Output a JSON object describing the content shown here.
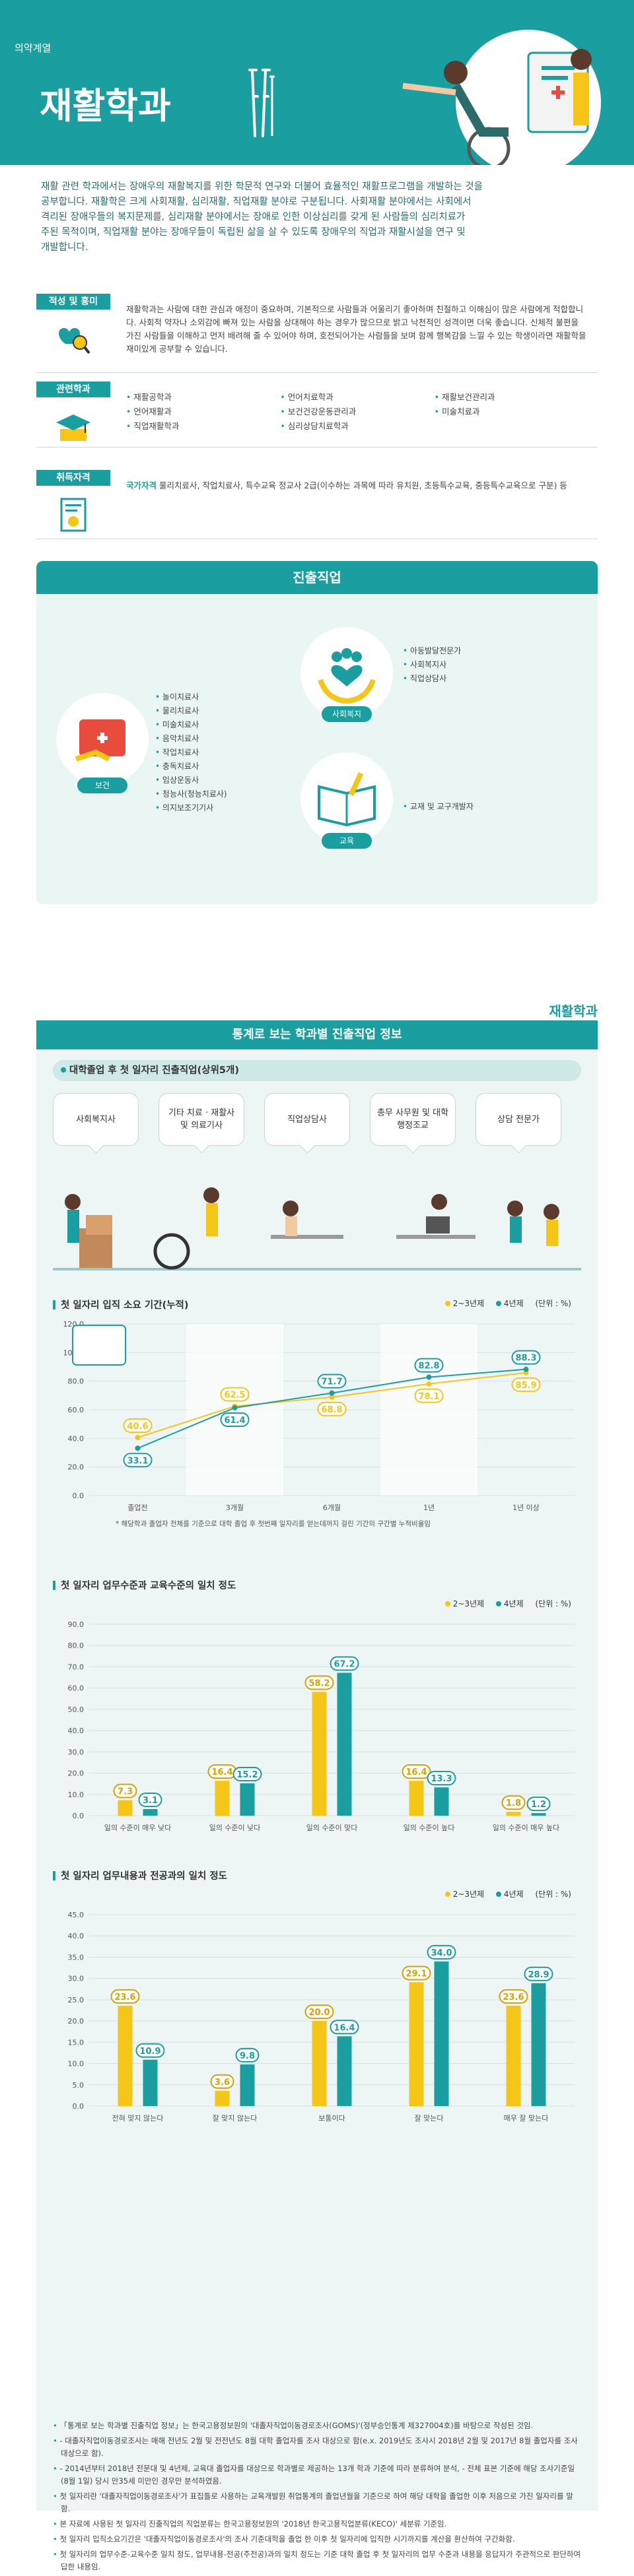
{
  "hero": {
    "category": "의약계열",
    "title": "재활학과"
  },
  "intro": "재활 관련 학과에서는 장애우의 재활복지를 위한 학문적 연구와 더불어 효율적인 재활프로그램을 개발하는 것을 공부합니다. 재활학은 크게 사회재활, 심리재활, 직업재활 분야로 구분됩니다. 사회재활 분야에서는 사회에서 격리된 장애우들의 복지문제를, 심리재활 분야에서는 장애로 인한 이상심리를 갖게 된 사람들의 심리치료가 주된 목적이며, 직업재활 분야는 장애우들이 독립된 삶을 살 수 있도록 장애우의 직업과 재활시설을 연구 및 개발합니다.",
  "aptitude": {
    "tag": "적성 및 흥미",
    "text": "재활학과는 사람에 대한 관심과 애정이 중요하며, 기본적으로 사람들과 어울리기 좋아하며 친절하고 이해심이 많은 사람에게 적합합니다. 사회적 약자나 소외감에 빠져 있는 사람을 상대해야 하는 경우가 많으므로 밝고 낙천적인 성격이면 더욱 좋습니다. 신체적 불편을 가진 사람들을 이해하고 먼저 배려해 줄 수 있어야 하며, 호전되어가는 사람들을 보며 함께 행복감을 느낄 수 있는 학생이라면 재활학을 재미있게 공부할 수 있습니다."
  },
  "departments": {
    "tag": "관련학과",
    "items": [
      "재활공학과",
      "언어치료학과",
      "재활보건관리과",
      "언어재활과",
      "보건건강운동관리과",
      "미술치료과",
      "직업재활학과",
      "심리상담치료학과"
    ]
  },
  "certificates": {
    "tag": "취득자격",
    "prefix": "국가자격",
    "text": "물리치료사, 작업치료사, 특수교육 정교사 2급(이수하는 과목에 따라 유치원, 초등특수교육, 중등특수교육으로 구분) 등"
  },
  "careers": {
    "title": "진출직업",
    "groups": [
      {
        "label": "보건",
        "jobs": [
          "놀이치료사",
          "물리치료사",
          "미술치료사",
          "음악치료사",
          "작업치료사",
          "충독치료사",
          "임상운동사",
          "청능사(청능치료사)",
          "의지보조기기사"
        ]
      },
      {
        "label": "사회복지",
        "jobs": [
          "아동발달전문가",
          "사회복지사",
          "직업상담사"
        ]
      },
      {
        "label": "교육",
        "jobs": [
          "교재 및 교구개발자"
        ]
      }
    ]
  },
  "section2": {
    "tag": "재활학과",
    "title": "통계로 보는 학과별 진출직업 정보",
    "top_jobs_title": "대학졸업 후 첫 일자리 진출직업(상위5개)",
    "top_jobs": [
      "사회복지사",
      "기타 치료 · 재활사 및 의료기사",
      "직업상담사",
      "총무 사무원 및 대학 행정조교",
      "상담 전문가"
    ],
    "legend_a": "2~3년제",
    "legend_b": "4년제",
    "unit": "(단위 : %)"
  },
  "chart_data": [
    {
      "type": "line",
      "title": "첫 일자리 입직 소요 기간(누적)",
      "categories": [
        "졸업전",
        "3개월",
        "6개월",
        "1년",
        "1년 이상"
      ],
      "ylim": [
        0,
        120
      ],
      "yticks": [
        "0.0",
        "20.0",
        "40.0",
        "60.0",
        "80.0",
        "100.0",
        "120.0"
      ],
      "series": [
        {
          "name": "2~3년제",
          "values": [
            40.6,
            62.5,
            68.8,
            78.1,
            85.9
          ]
        },
        {
          "name": "4년제",
          "values": [
            33.1,
            61.4,
            71.7,
            82.8,
            88.3
          ]
        }
      ],
      "note": "* 해당학과 졸업자 전체를 기준으로 대학 졸업 후 첫번째 일자리를 얻는데까지 걸린 기간의 구간별 누적비율임"
    },
    {
      "type": "bar",
      "title": "첫 일자리 업무수준과 교육수준의 일치 정도",
      "categories": [
        "일의 수준이 매우 낮다",
        "일의 수준이 낮다",
        "일의 수준이 맞다",
        "일의 수준이 높다",
        "일의 수준이 매우 높다"
      ],
      "ylim": [
        0,
        90
      ],
      "yticks": [
        "0.0",
        "10.0",
        "20.0",
        "30.0",
        "40.0",
        "50.0",
        "60.0",
        "70.0",
        "80.0",
        "90.0"
      ],
      "series": [
        {
          "name": "2~3년제",
          "values": [
            7.3,
            16.4,
            58.2,
            16.4,
            1.8
          ]
        },
        {
          "name": "4년제",
          "values": [
            3.1,
            15.2,
            67.2,
            13.3,
            1.2
          ]
        }
      ]
    },
    {
      "type": "bar",
      "title": "첫 일자리 업무내용과 전공과의 일치 정도",
      "categories": [
        "전혀 맞지 않는다",
        "잘 맞지 않는다",
        "보통이다",
        "잘 맞는다",
        "매우 잘 맞는다"
      ],
      "ylim": [
        0,
        45
      ],
      "yticks": [
        "0.0",
        "5.0",
        "10.0",
        "15.0",
        "20.0",
        "25.0",
        "30.0",
        "35.0",
        "40.0",
        "45.0"
      ],
      "series": [
        {
          "name": "2~3년제",
          "values": [
            23.6,
            3.6,
            20.0,
            29.1,
            23.6
          ]
        },
        {
          "name": "4년제",
          "values": [
            10.9,
            9.8,
            16.4,
            34.0,
            28.9
          ]
        }
      ]
    }
  ],
  "footnotes": [
    "「통계로 보는 학과별 진출직업 정보」는 한국고용정보원의 '대졸자직업이동경로조사(GOMS)'(정부승인통계 제327004호)를 바탕으로 작성된 것임.",
    "- 대졸자직업이동경로조사는 매해 전년도 2월 및 전전년도 8월 대학 졸업자를 조사 대상으로 함(e.x. 2019년도 조사시 2018년 2월 및 2017년 8월 졸업자를 조사대상으로 함).",
    "- 2014년부터 2018년 전문대 및 4년제, 교육대 졸업자를 대상으로 학과별로 제공하는 13개 학과 기준에 따라 분류하여 분석, - 전체 표본 기준에 해당 조사기준일(8월 1일) 당시 만35세 미만인 경우만 분석하였음.",
    "첫 일자리란 '대졸자직업이동경로조사'가 표집틀로 사용하는 교육개발원 취업통계의 졸업년월을 기준으로 하여 해당 대학을 졸업한 이후 처음으로 가진 일자리를 말함.",
    "본 자료에 사용된 첫 일자리 진출직업의 직업분류는 한국고용정보원의 '2018년 한국고용직업분류(KECO)' 세분류 기준임.",
    "첫 일자리 입직소요기간은 '대졸자직업이동경로조사'의 조사 기준대학을 졸업 한 이후 첫 일자리에 입직한 시기까지를 계산을 환산하여 구간화함.",
    "첫 일자리의 업무수준-교육수준 일치 정도, 업무내용-전공(주전공)과의 일치 정도는 기준 대학 졸업 후 첫 일자리의 업무 수준과 내용을 응답자가 주관적으로 판단하여 답한 내용임."
  ],
  "colors": {
    "teal": "#1a9ea0",
    "yellow": "#f5c518",
    "line_a": "#f5c518",
    "line_b": "#1a9ea0"
  }
}
